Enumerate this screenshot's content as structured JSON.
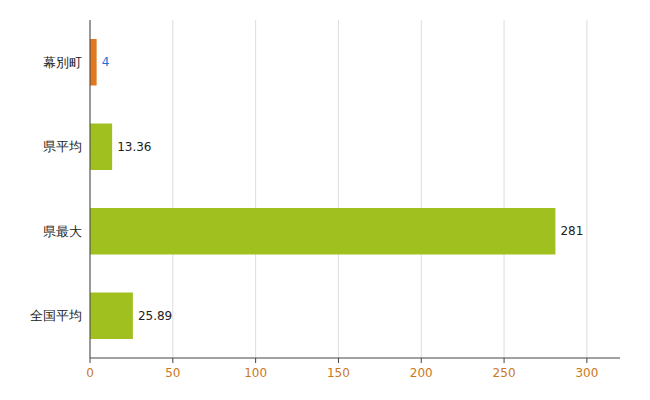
{
  "chart_data": {
    "type": "bar",
    "orientation": "horizontal",
    "categories": [
      "幕別町",
      "県平均",
      "県最大",
      "全国平均"
    ],
    "values": [
      4,
      13.36,
      281,
      25.89
    ],
    "colors": [
      "#e07820",
      "#a0c020",
      "#a0c020",
      "#a0c020"
    ],
    "xlim": [
      0,
      320
    ],
    "xticks": [
      0,
      50,
      100,
      150,
      200,
      250,
      300
    ],
    "grid": true,
    "data_labels": true
  }
}
